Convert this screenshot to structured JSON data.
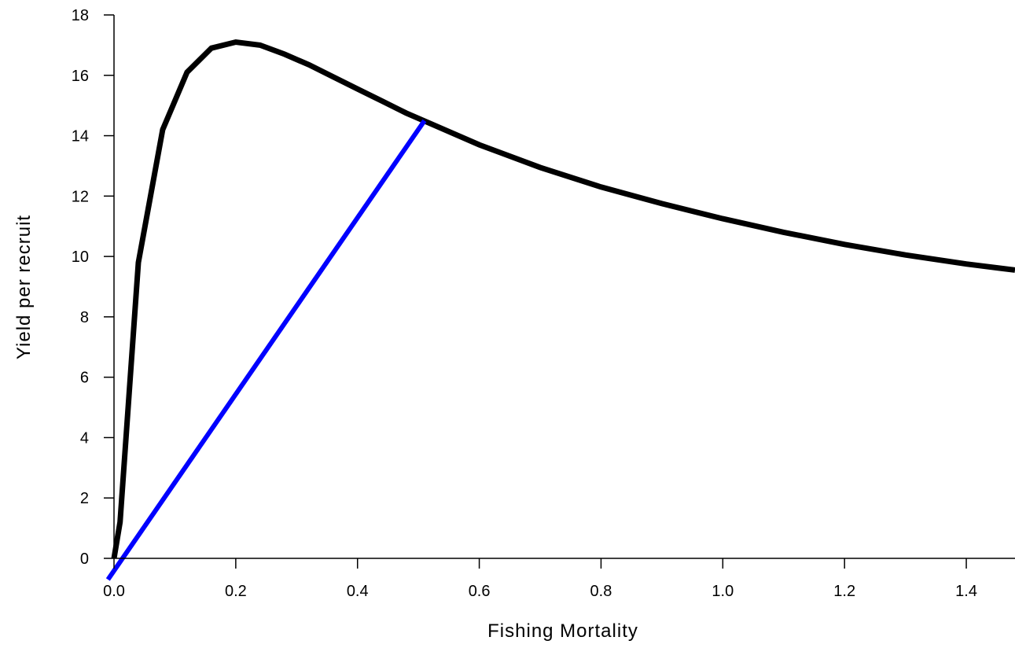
{
  "chart_data": {
    "type": "line",
    "title": "",
    "xlabel": "Fishing Mortality",
    "ylabel": "Yield per recruit",
    "xlim": [
      0,
      1.48
    ],
    "ylim": [
      0,
      18
    ],
    "x_ticks": [
      0.0,
      0.2,
      0.4,
      0.6,
      0.8,
      1.0,
      1.2,
      1.4
    ],
    "x_tick_labels": [
      "0.0",
      "0.2",
      "0.4",
      "0.6",
      "0.8",
      "1.0",
      "1.2",
      "1.4"
    ],
    "y_ticks": [
      0,
      2,
      4,
      6,
      8,
      10,
      12,
      14,
      16,
      18
    ],
    "y_tick_labels": [
      "0",
      "2",
      "4",
      "6",
      "8",
      "10",
      "12",
      "14",
      "16",
      "18"
    ],
    "grid": false,
    "legend": "none",
    "series": [
      {
        "color": "#000000",
        "x": [
          0.0,
          0.01,
          0.04,
          0.08,
          0.12,
          0.16,
          0.2,
          0.24,
          0.28,
          0.32,
          0.36,
          0.4,
          0.44,
          0.48,
          0.52,
          0.6,
          0.7,
          0.8,
          0.9,
          1.0,
          1.1,
          1.2,
          1.3,
          1.4,
          1.48
        ],
        "y": [
          0.0,
          1.2,
          9.8,
          14.2,
          16.1,
          16.9,
          17.1,
          17.0,
          16.7,
          16.35,
          15.95,
          15.55,
          15.15,
          14.75,
          14.4,
          13.7,
          12.95,
          12.3,
          11.75,
          11.25,
          10.8,
          10.4,
          10.05,
          9.75,
          9.55
        ]
      },
      {
        "color": "#0000ff",
        "x": [
          -0.01,
          0.51
        ],
        "y": [
          -0.7,
          14.5
        ]
      }
    ]
  }
}
